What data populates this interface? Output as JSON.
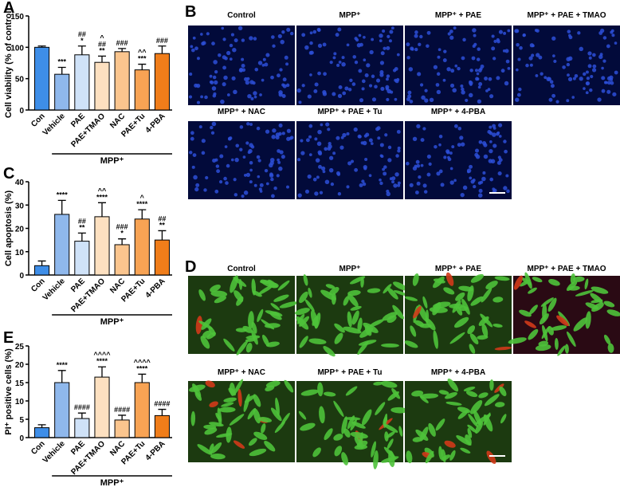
{
  "chart_data": [
    {
      "type": "bar",
      "panel": "A",
      "y_label": "Cell viability (% of control)",
      "group_label": "MPP⁺",
      "categories": [
        "Con",
        "Vehicle",
        "PAE",
        "PAE+TMAO",
        "NAC",
        "PAE+Tu",
        "4-PBA"
      ],
      "values": [
        100,
        57,
        88,
        76,
        93,
        64,
        90
      ],
      "errors": [
        2,
        11,
        14,
        10,
        5,
        9,
        12
      ],
      "colors": [
        "#3e8ee8",
        "#8fb8ec",
        "#cfe2f8",
        "#fde0c0",
        "#fbc58e",
        "#f8a354",
        "#f07d1a"
      ],
      "annotations": [
        [],
        [
          "***"
        ],
        [
          "##",
          "*"
        ],
        [
          "^",
          "##",
          "**"
        ],
        [
          "###"
        ],
        [
          "^^",
          "***"
        ],
        [
          "###"
        ]
      ],
      "ylim": [
        0,
        150
      ],
      "yticks": [
        0,
        50,
        100,
        150
      ]
    },
    {
      "type": "bar",
      "panel": "C",
      "y_label": "Cell apoptosis (%)",
      "group_label": "MPP⁺",
      "categories": [
        "Con",
        "Vehicle",
        "PAE",
        "PAE+TMAO",
        "NAC",
        "PAE+Tu",
        "4-PBA"
      ],
      "values": [
        4,
        26,
        14.5,
        25,
        13,
        24,
        15
      ],
      "errors": [
        2,
        6,
        3.5,
        6,
        2.5,
        4,
        4
      ],
      "colors": [
        "#3e8ee8",
        "#8fb8ec",
        "#cfe2f8",
        "#fde0c0",
        "#fbc58e",
        "#f8a354",
        "#f07d1a"
      ],
      "annotations": [
        [],
        [
          "****"
        ],
        [
          "##",
          "**"
        ],
        [
          "^^",
          "****"
        ],
        [
          "###",
          "*"
        ],
        [
          "^",
          "****"
        ],
        [
          "##",
          "**"
        ]
      ],
      "ylim": [
        0,
        40
      ],
      "yticks": [
        0,
        10,
        20,
        30,
        40
      ]
    },
    {
      "type": "bar",
      "panel": "E",
      "y_label": "PI⁺ positive cells (%)",
      "group_label": "MPP⁺",
      "categories": [
        "Con",
        "Vehicle",
        "PAE",
        "PAE+TMAO",
        "NAC",
        "PAE+Tu",
        "4-PBA"
      ],
      "values": [
        2.7,
        15,
        5.2,
        16.5,
        4.8,
        15,
        6
      ],
      "errors": [
        0.8,
        3.3,
        1.5,
        2.8,
        1.3,
        2.3,
        1.7
      ],
      "colors": [
        "#3e8ee8",
        "#8fb8ec",
        "#cfe2f8",
        "#fde0c0",
        "#fbc58e",
        "#f8a354",
        "#f07d1a"
      ],
      "annotations": [
        [],
        [
          "****"
        ],
        [
          "####"
        ],
        [
          "^^^^",
          "****"
        ],
        [
          "####"
        ],
        [
          "^^^^",
          "****"
        ],
        [
          "####"
        ]
      ],
      "ylim": [
        0,
        25
      ],
      "yticks": [
        0,
        5,
        10,
        15,
        20,
        25
      ]
    }
  ],
  "image_panels": [
    {
      "label": "B",
      "titles": [
        "Control",
        "MPP⁺",
        "MPP⁺ + PAE",
        "MPP⁺ + PAE + TMAO",
        "MPP⁺ + NAC",
        "MPP⁺ + PAE + Tu",
        "MPP⁺ + 4-PBA"
      ]
    },
    {
      "label": "D",
      "titles": [
        "Control",
        "MPP⁺",
        "MPP⁺ + PAE",
        "MPP⁺ + PAE + TMAO",
        "MPP⁺ + NAC",
        "MPP⁺ + PAE + Tu",
        "MPP⁺ + 4-PBA"
      ]
    }
  ]
}
